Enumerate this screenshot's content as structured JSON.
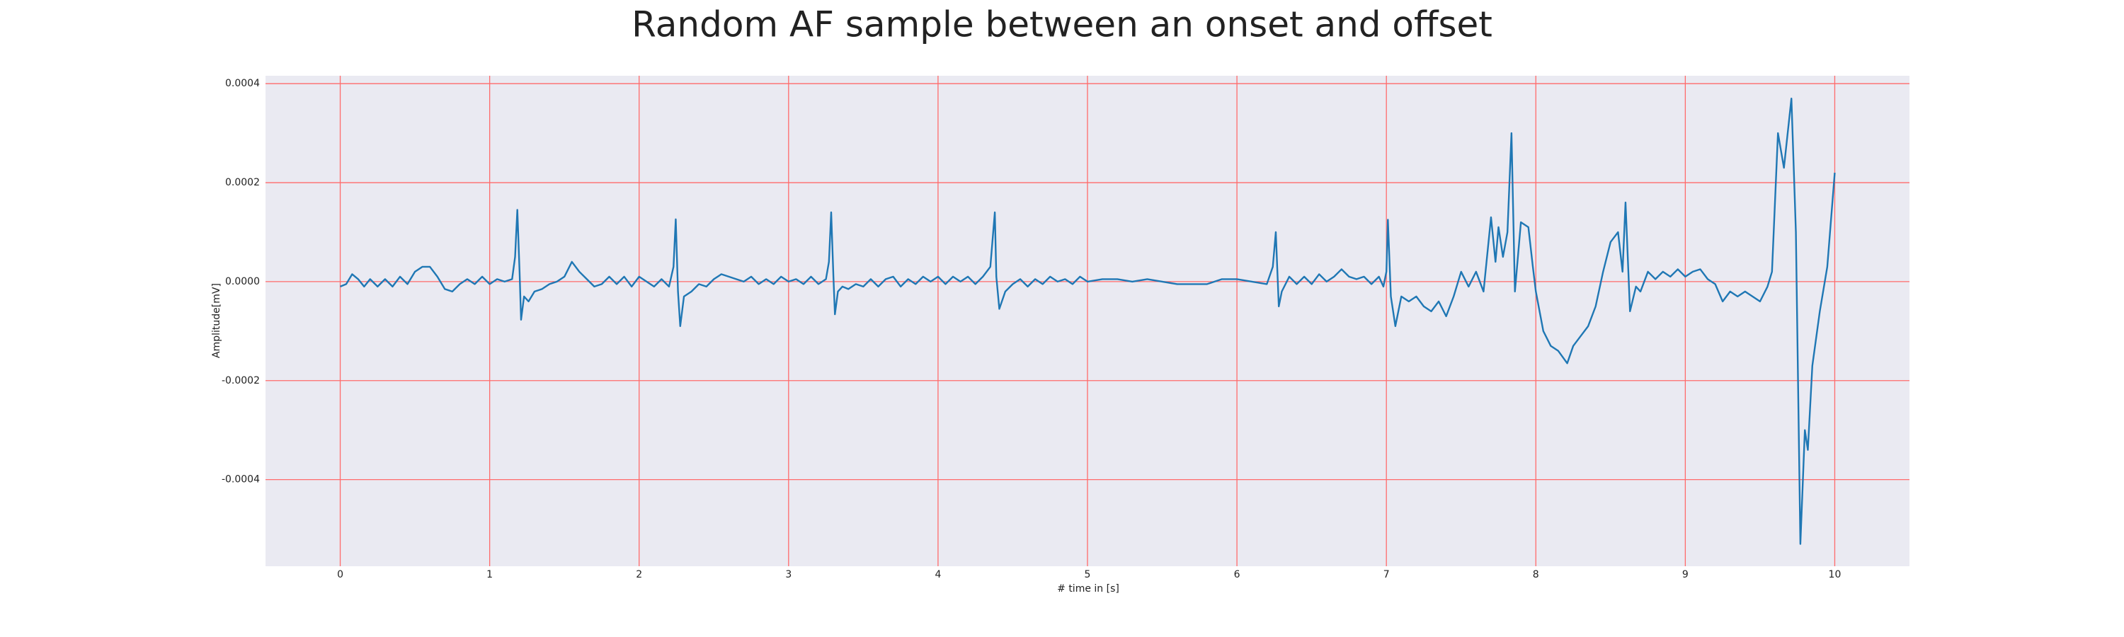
{
  "chart_data": {
    "type": "line",
    "title": "Random AF sample between an onset and offset",
    "x_label": "# time in [s]",
    "y_label": "Amplitude[mV]",
    "color": "#1f77b4",
    "background": "#eaeaf2",
    "grid": true,
    "grid_color": "#ff6b6b",
    "xlim": [
      -0.5,
      10.5
    ],
    "xticks": [
      0,
      1,
      2,
      3,
      4,
      5,
      6,
      7,
      8,
      9,
      10
    ],
    "ylim": [
      -0.000575,
      0.000416
    ],
    "yticks": [
      -0.0004,
      -0.0002,
      {
        "value": 0,
        "label": "0.0000"
      },
      0.0002,
      0.0004
    ],
    "x": [
      0,
      0.04,
      0.08,
      0.12,
      0.16,
      0.2,
      0.25,
      0.3,
      0.35,
      0.4,
      0.45,
      0.5,
      0.55,
      0.6,
      0.65,
      0.7,
      0.75,
      0.8,
      0.85,
      0.9,
      0.95,
      1.0,
      1.05,
      1.1,
      1.15,
      1.17,
      1.185,
      1.2,
      1.21,
      1.23,
      1.26,
      1.3,
      1.35,
      1.4,
      1.45,
      1.5,
      1.55,
      1.6,
      1.65,
      1.7,
      1.75,
      1.8,
      1.85,
      1.9,
      1.95,
      2.0,
      2.05,
      2.1,
      2.15,
      2.2,
      2.23,
      2.245,
      2.26,
      2.275,
      2.3,
      2.35,
      2.4,
      2.45,
      2.5,
      2.55,
      2.6,
      2.65,
      2.7,
      2.75,
      2.8,
      2.85,
      2.9,
      2.95,
      3.0,
      3.05,
      3.1,
      3.15,
      3.2,
      3.25,
      3.27,
      3.285,
      3.3,
      3.31,
      3.33,
      3.36,
      3.4,
      3.45,
      3.5,
      3.55,
      3.6,
      3.65,
      3.7,
      3.75,
      3.8,
      3.85,
      3.9,
      3.95,
      4.0,
      4.05,
      4.1,
      4.15,
      4.2,
      4.25,
      4.3,
      4.35,
      4.38,
      4.39,
      4.41,
      4.45,
      4.5,
      4.55,
      4.6,
      4.65,
      4.7,
      4.75,
      4.8,
      4.85,
      4.9,
      4.95,
      5.0,
      5.1,
      5.2,
      5.3,
      5.4,
      5.5,
      5.6,
      5.7,
      5.8,
      5.9,
      6.0,
      6.1,
      6.2,
      6.24,
      6.26,
      6.28,
      6.3,
      6.35,
      6.4,
      6.45,
      6.5,
      6.55,
      6.6,
      6.65,
      6.7,
      6.75,
      6.8,
      6.85,
      6.9,
      6.95,
      6.98,
      7.0,
      7.01,
      7.03,
      7.06,
      7.1,
      7.15,
      7.2,
      7.25,
      7.3,
      7.35,
      7.4,
      7.45,
      7.5,
      7.55,
      7.6,
      7.65,
      7.7,
      7.73,
      7.75,
      7.78,
      7.81,
      7.837,
      7.86,
      7.9,
      7.95,
      7.98,
      8.0,
      8.05,
      8.1,
      8.15,
      8.21,
      8.25,
      8.3,
      8.35,
      8.4,
      8.45,
      8.5,
      8.55,
      8.58,
      8.6,
      8.63,
      8.67,
      8.7,
      8.75,
      8.8,
      8.85,
      8.9,
      8.95,
      9.0,
      9.05,
      9.1,
      9.15,
      9.2,
      9.25,
      9.3,
      9.35,
      9.4,
      9.45,
      9.5,
      9.55,
      9.58,
      9.62,
      9.66,
      9.71,
      9.74,
      9.77,
      9.8,
      9.82,
      9.85,
      9.9,
      9.95,
      10.0
    ],
    "values": [
      -1e-05,
      -5e-06,
      1.5e-05,
      5e-06,
      -1e-05,
      5e-06,
      -1e-05,
      5e-06,
      -1e-05,
      1e-05,
      -5e-06,
      2e-05,
      3e-05,
      3e-05,
      1e-05,
      -1.5e-05,
      -2e-05,
      -5e-06,
      5e-06,
      -5e-06,
      1e-05,
      -5e-06,
      5e-06,
      0,
      5e-06,
      5e-05,
      0.000145,
      2e-05,
      -7.7e-05,
      -3e-05,
      -4e-05,
      -2e-05,
      -1.5e-05,
      -5e-06,
      0,
      1e-05,
      4e-05,
      2e-05,
      5e-06,
      -1e-05,
      -5e-06,
      1e-05,
      -5e-06,
      1e-05,
      -1e-05,
      1e-05,
      0,
      -1e-05,
      5e-06,
      -1e-05,
      3e-05,
      0.000126,
      -2e-05,
      -9e-05,
      -3e-05,
      -2e-05,
      -5e-06,
      -1e-05,
      5e-06,
      1.5e-05,
      1e-05,
      5e-06,
      0,
      1e-05,
      -5e-06,
      5e-06,
      -5e-06,
      1e-05,
      0,
      5e-06,
      -5e-06,
      1e-05,
      -5e-06,
      5e-06,
      4e-05,
      0.00014,
      1e-05,
      -6.6e-05,
      -2e-05,
      -1e-05,
      -1.5e-05,
      -5e-06,
      -1e-05,
      5e-06,
      -1e-05,
      5e-06,
      1e-05,
      -1e-05,
      5e-06,
      -5e-06,
      1e-05,
      0,
      1e-05,
      -5e-06,
      1e-05,
      0,
      1e-05,
      -5e-06,
      1e-05,
      3e-05,
      0.00014,
      1e-05,
      -5.5e-05,
      -2e-05,
      -5e-06,
      5e-06,
      -1e-05,
      5e-06,
      -5e-06,
      1e-05,
      0,
      5e-06,
      -5e-06,
      1e-05,
      0,
      5e-06,
      5e-06,
      0,
      5e-06,
      0,
      -5e-06,
      -5e-06,
      -5e-06,
      5e-06,
      5e-06,
      0,
      -5e-06,
      3e-05,
      0.0001,
      -5e-05,
      -2e-05,
      1e-05,
      -5e-06,
      1e-05,
      -5e-06,
      1.5e-05,
      0,
      1e-05,
      2.5e-05,
      1e-05,
      5e-06,
      1e-05,
      -5e-06,
      1e-05,
      -1e-05,
      2e-05,
      0.000125,
      -3e-05,
      -9e-05,
      -3e-05,
      -4e-05,
      -3e-05,
      -5e-05,
      -6e-05,
      -4e-05,
      -7e-05,
      -3e-05,
      2e-05,
      -1e-05,
      2e-05,
      -2e-05,
      0.00013,
      4e-05,
      0.00011,
      5e-05,
      0.0001,
      0.0003,
      -2e-05,
      0.00012,
      0.00011,
      3e-05,
      -2e-05,
      -0.0001,
      -0.00013,
      -0.00014,
      -0.000165,
      -0.00013,
      -0.00011,
      -9e-05,
      -5e-05,
      2e-05,
      8e-05,
      0.0001,
      2e-05,
      0.00016,
      -6e-05,
      -1e-05,
      -2e-05,
      2e-05,
      5e-06,
      2e-05,
      1e-05,
      2.5e-05,
      1e-05,
      2e-05,
      2.5e-05,
      5e-06,
      -5e-06,
      -4e-05,
      -2e-05,
      -3e-05,
      -2e-05,
      -3e-05,
      -4e-05,
      -1e-05,
      2e-05,
      0.0003,
      0.00023,
      0.00037,
      0.0001,
      -0.00053,
      -0.0003,
      -0.00034,
      -0.00017,
      -6e-05,
      3e-05,
      0.00022
    ]
  }
}
